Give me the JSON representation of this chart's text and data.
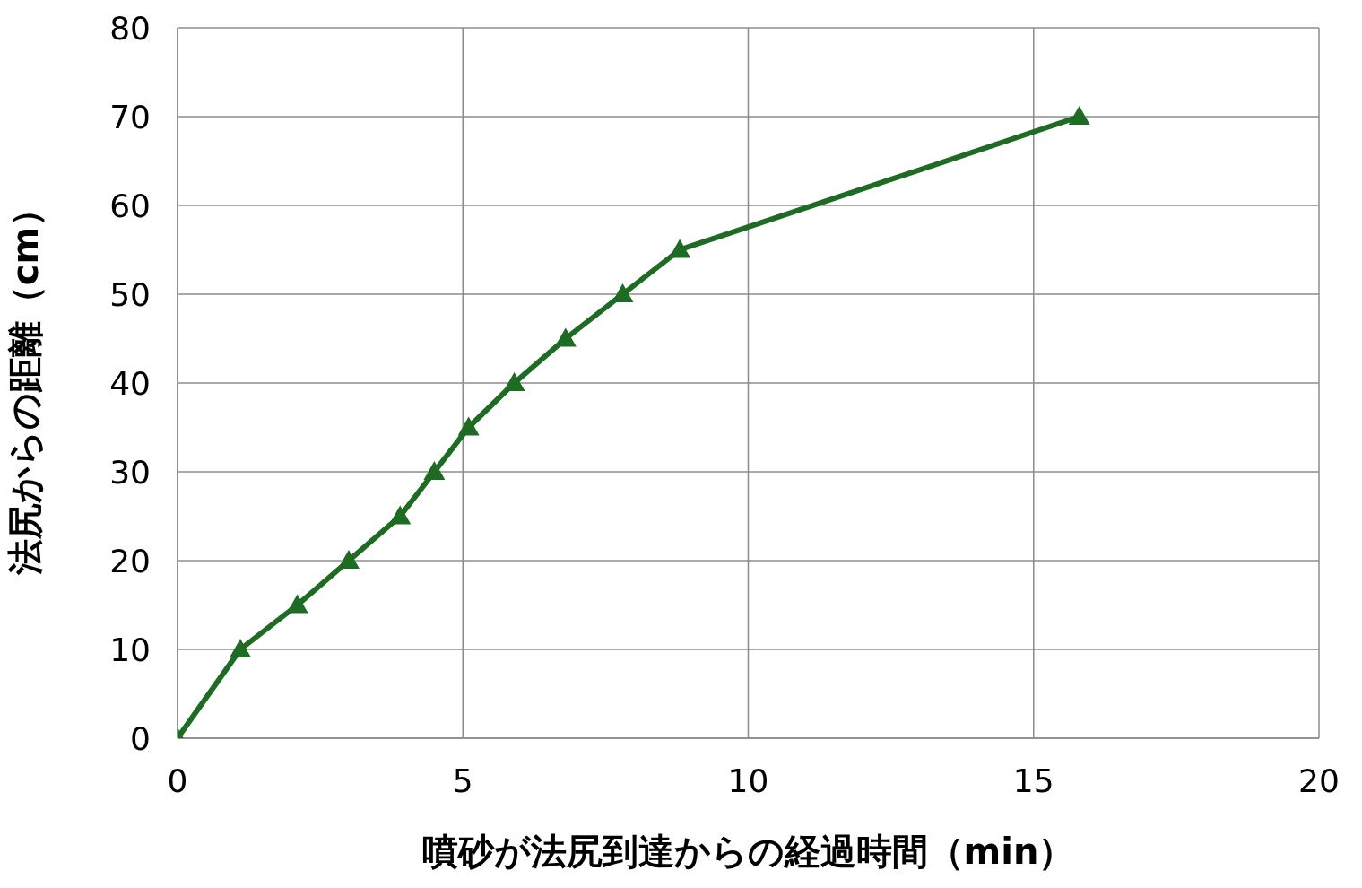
{
  "chart_data": {
    "type": "line",
    "xlabel": "噴砂が法尻到達からの経過時間（min）",
    "ylabel": "法尻からの距離（cm）",
    "x": [
      0,
      1.1,
      2.1,
      3.0,
      3.9,
      4.5,
      5.1,
      5.9,
      6.8,
      7.8,
      8.8,
      15.8
    ],
    "series": [
      {
        "color": "#1e6b23",
        "values": [
          0,
          10,
          15,
          20,
          25,
          30,
          35,
          40,
          45,
          50,
          55,
          70
        ]
      }
    ],
    "xlim": [
      0,
      20
    ],
    "xticks": [
      0,
      5,
      10,
      15,
      20
    ],
    "ylim": [
      0,
      80
    ],
    "yticks": [
      0,
      10,
      20,
      30,
      40,
      50,
      60,
      70,
      80
    ],
    "grid": true,
    "marker": "triangle",
    "line_style": "solid"
  }
}
